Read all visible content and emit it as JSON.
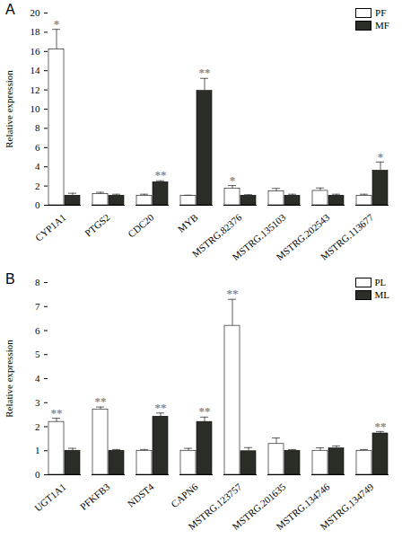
{
  "chart_data": [
    {
      "type": "bar",
      "title": "A",
      "y_label": "Relative expression",
      "categories": [
        "CYP1A1",
        "PTGS2",
        "CDC20",
        "MYB",
        "MSTRG.82376",
        "MSTRG.135103",
        "MSTRG.202543",
        "MSTRG.113677"
      ],
      "series": [
        {
          "name": "PF",
          "color": "#ffffff",
          "values": [
            16.2,
            1.15,
            1.0,
            1.0,
            1.75,
            1.45,
            1.5,
            1.0
          ],
          "errors": [
            2.1,
            0.2,
            0.15,
            0.05,
            0.3,
            0.3,
            0.3,
            0.15
          ],
          "significance": [
            "*",
            null,
            null,
            null,
            "*",
            null,
            null,
            null
          ]
        },
        {
          "name": "MF",
          "color": "#2b2e27",
          "values": [
            1.0,
            1.0,
            2.4,
            11.9,
            1.0,
            1.0,
            1.0,
            3.6
          ],
          "errors": [
            0.25,
            0.15,
            0.15,
            1.3,
            0.1,
            0.15,
            0.15,
            0.9
          ],
          "significance": [
            null,
            null,
            "**",
            "**",
            null,
            null,
            null,
            "*"
          ]
        }
      ],
      "ylim": [
        0,
        20
      ],
      "yticks": [
        0,
        2,
        4,
        6,
        8,
        10,
        12,
        14,
        16,
        18,
        20
      ],
      "legend": "top-right"
    },
    {
      "type": "bar",
      "title": "B",
      "y_label": "Relative expression",
      "categories": [
        "UGT1A1",
        "PFKFB3",
        "NDST4",
        "CAPN6",
        "MSTRG.123757",
        "MSTRG.201635",
        "MSTRG.134746",
        "MSTRG.134749"
      ],
      "series": [
        {
          "name": "PL",
          "color": "#ffffff",
          "values": [
            2.2,
            2.72,
            1.0,
            1.0,
            6.2,
            1.28,
            1.0,
            1.0
          ],
          "errors": [
            0.15,
            0.1,
            0.05,
            0.1,
            1.1,
            0.25,
            0.12,
            0.05
          ],
          "significance": [
            "**",
            "**",
            null,
            null,
            "**",
            null,
            null,
            null
          ]
        },
        {
          "name": "ML",
          "color": "#2b2e27",
          "values": [
            1.0,
            1.0,
            2.42,
            2.2,
            0.98,
            1.0,
            1.1,
            1.72
          ],
          "errors": [
            0.1,
            0.05,
            0.15,
            0.2,
            0.15,
            0.05,
            0.1,
            0.08
          ],
          "significance": [
            null,
            null,
            "**",
            "**",
            null,
            null,
            null,
            "**"
          ]
        }
      ],
      "ylim": [
        0,
        8
      ],
      "yticks": [
        0,
        1,
        2,
        3,
        4,
        5,
        6,
        7,
        8
      ],
      "legend": "top-right"
    }
  ]
}
